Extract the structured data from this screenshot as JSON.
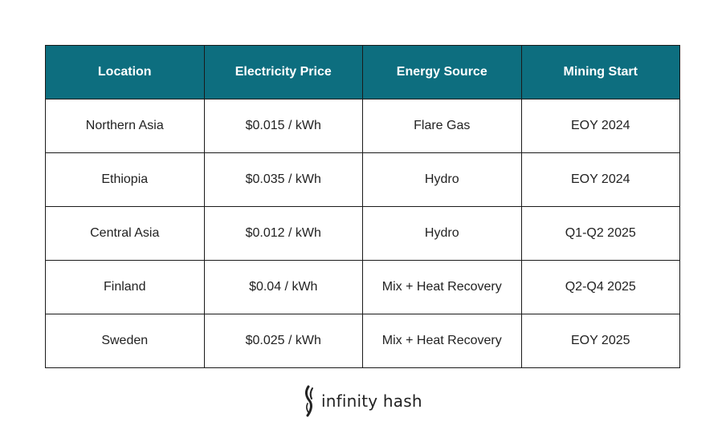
{
  "table": {
    "headers": [
      "Location",
      "Electricity Price",
      "Energy Source",
      "Mining Start"
    ],
    "rows": [
      [
        "Northern Asia",
        "$0.015 / kWh",
        "Flare Gas",
        "EOY 2024"
      ],
      [
        "Ethiopia",
        "$0.035 / kWh",
        "Hydro",
        "EOY 2024"
      ],
      [
        "Central Asia",
        "$0.012 / kWh",
        "Hydro",
        "Q1-Q2 2025"
      ],
      [
        "Finland",
        "$0.04 / kWh",
        "Mix + Heat Recovery",
        "Q2-Q4 2025"
      ],
      [
        "Sweden",
        "$0.025 / kWh",
        "Mix + Heat Recovery",
        "EOY 2025"
      ]
    ]
  },
  "brand": {
    "name": "infinity hash",
    "icon": "infinity-hash-logo-icon"
  },
  "colors": {
    "header_background": "#0d6e7f",
    "header_text": "#ffffff",
    "border": "#1a1a1a"
  }
}
